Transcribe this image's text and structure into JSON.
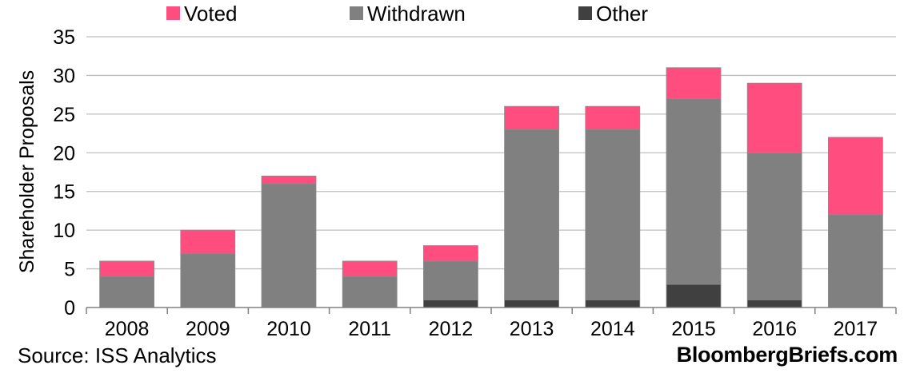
{
  "chart_data": {
    "type": "bar",
    "stacked": true,
    "categories": [
      "2008",
      "2009",
      "2010",
      "2011",
      "2012",
      "2013",
      "2014",
      "2015",
      "2016",
      "2017"
    ],
    "series": [
      {
        "name": "Other",
        "color": "#404040",
        "values": [
          0,
          0,
          0,
          0,
          1,
          1,
          1,
          3,
          1,
          0
        ]
      },
      {
        "name": "Withdrawn",
        "color": "#808080",
        "values": [
          4,
          7,
          16,
          4,
          5,
          22,
          22,
          24,
          19,
          12
        ]
      },
      {
        "name": "Voted",
        "color": "#ff4d80",
        "values": [
          2,
          3,
          1,
          2,
          2,
          3,
          3,
          4,
          9,
          10
        ]
      }
    ],
    "legend_order": [
      "Voted",
      "Withdrawn",
      "Other"
    ],
    "legend_position": "top",
    "ylabel": "Shareholder Proposals",
    "ylim": [
      0,
      35
    ],
    "yticks": [
      "0",
      "5",
      "10",
      "15",
      "20",
      "25",
      "30",
      "35"
    ],
    "grid": true
  },
  "footer": {
    "source": "Source: ISS Analytics",
    "brand": "BloombergBriefs.com"
  }
}
